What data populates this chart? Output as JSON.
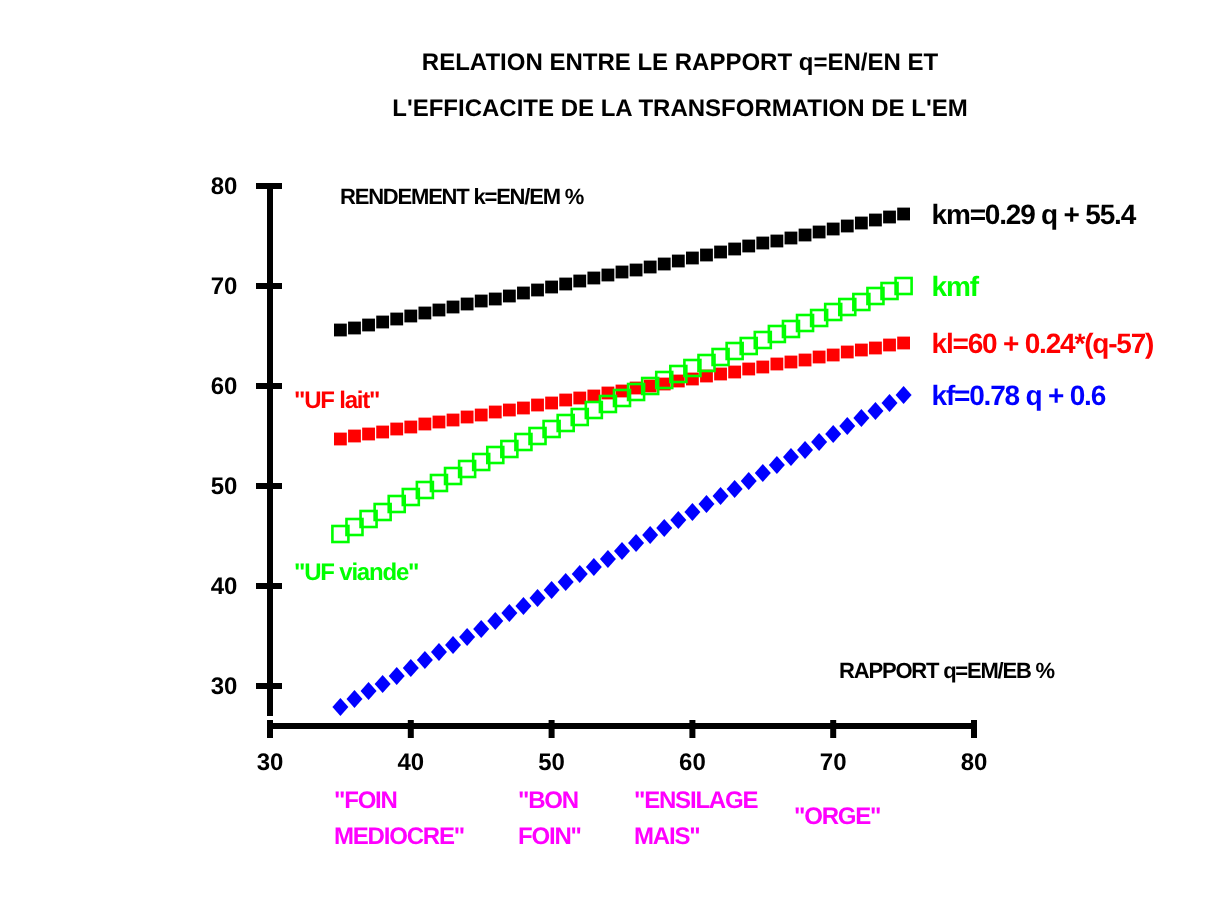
{
  "chart_data": {
    "type": "scatter",
    "title": "RELATION ENTRE LE RAPPORT q=EN/EN ET\nL'EFFICACITE DE LA TRANSFORMATION DE L'EM",
    "xlabel": "RAPPORT  q=EM/EB  %",
    "ylabel": "RENDEMENT  k=EN/EM  %",
    "x": [
      35,
      36,
      37,
      38,
      39,
      40,
      41,
      42,
      43,
      44,
      45,
      46,
      47,
      48,
      49,
      50,
      51,
      52,
      53,
      54,
      55,
      56,
      57,
      58,
      59,
      60,
      61,
      62,
      63,
      64,
      65,
      66,
      67,
      68,
      69,
      70,
      71,
      72,
      73,
      74,
      75
    ],
    "series": [
      {
        "name": "km=0.29 q + 55.4",
        "color": "#000000",
        "marker": "square",
        "values": [
          65.6,
          65.8,
          66.1,
          66.4,
          66.7,
          67.0,
          67.3,
          67.6,
          67.9,
          68.2,
          68.5,
          68.7,
          69.0,
          69.3,
          69.6,
          69.9,
          70.2,
          70.5,
          70.8,
          71.1,
          71.4,
          71.6,
          71.9,
          72.2,
          72.5,
          72.8,
          73.1,
          73.4,
          73.7,
          74.0,
          74.3,
          74.5,
          74.8,
          75.1,
          75.4,
          75.7,
          76.0,
          76.3,
          76.6,
          76.9,
          77.2
        ]
      },
      {
        "name": "kmf",
        "color": "#00ff00",
        "marker": "square",
        "values": [
          45.2,
          45.9,
          46.7,
          47.4,
          48.2,
          48.9,
          49.6,
          50.3,
          51.0,
          51.7,
          52.4,
          53.1,
          53.7,
          54.4,
          55.0,
          55.7,
          56.3,
          56.9,
          57.6,
          58.2,
          58.8,
          59.4,
          60.0,
          60.6,
          61.2,
          61.8,
          62.3,
          62.9,
          63.5,
          64.0,
          64.6,
          65.2,
          65.7,
          66.3,
          66.8,
          67.4,
          67.9,
          68.4,
          69.0,
          69.5,
          70.0
        ]
      },
      {
        "name": "kl=60 + 0.24*(q-57)",
        "color": "#ff0000",
        "marker": "square",
        "values": [
          54.7,
          55.0,
          55.2,
          55.4,
          55.7,
          55.9,
          56.2,
          56.4,
          56.6,
          56.9,
          57.1,
          57.4,
          57.6,
          57.8,
          58.1,
          58.3,
          58.6,
          58.8,
          59.0,
          59.3,
          59.5,
          59.8,
          60.0,
          60.2,
          60.5,
          60.7,
          61.0,
          61.2,
          61.4,
          61.7,
          61.9,
          62.2,
          62.4,
          62.6,
          62.9,
          63.1,
          63.4,
          63.6,
          63.8,
          64.1,
          64.3
        ]
      },
      {
        "name": "kf=0.78 q + 0.6",
        "color": "#0000ff",
        "marker": "diamond",
        "values": [
          27.9,
          28.7,
          29.5,
          30.2,
          31.0,
          31.8,
          32.6,
          33.4,
          34.1,
          34.9,
          35.7,
          36.5,
          37.3,
          38.0,
          38.8,
          39.6,
          40.4,
          41.2,
          41.9,
          42.7,
          43.5,
          44.3,
          45.1,
          45.8,
          46.6,
          47.4,
          48.2,
          49.0,
          49.7,
          50.5,
          51.3,
          52.1,
          52.9,
          53.6,
          54.4,
          55.2,
          56.0,
          56.8,
          57.5,
          58.3,
          59.1
        ]
      }
    ],
    "annotations": [
      "\"UF lait\"",
      "\"UF viande\"",
      "\"FOIN\nMEDIOCRE\"",
      "\"BON\nFOIN\"",
      "\"ENSILAGE\nMAIS\"",
      "\"ORGE\""
    ],
    "xlim": [
      30,
      80
    ],
    "xticks": [
      30,
      40,
      50,
      60,
      70,
      80
    ],
    "ylim": [
      27,
      80
    ],
    "yticks": [
      30,
      40,
      50,
      60,
      70,
      80
    ],
    "grid": false
  }
}
